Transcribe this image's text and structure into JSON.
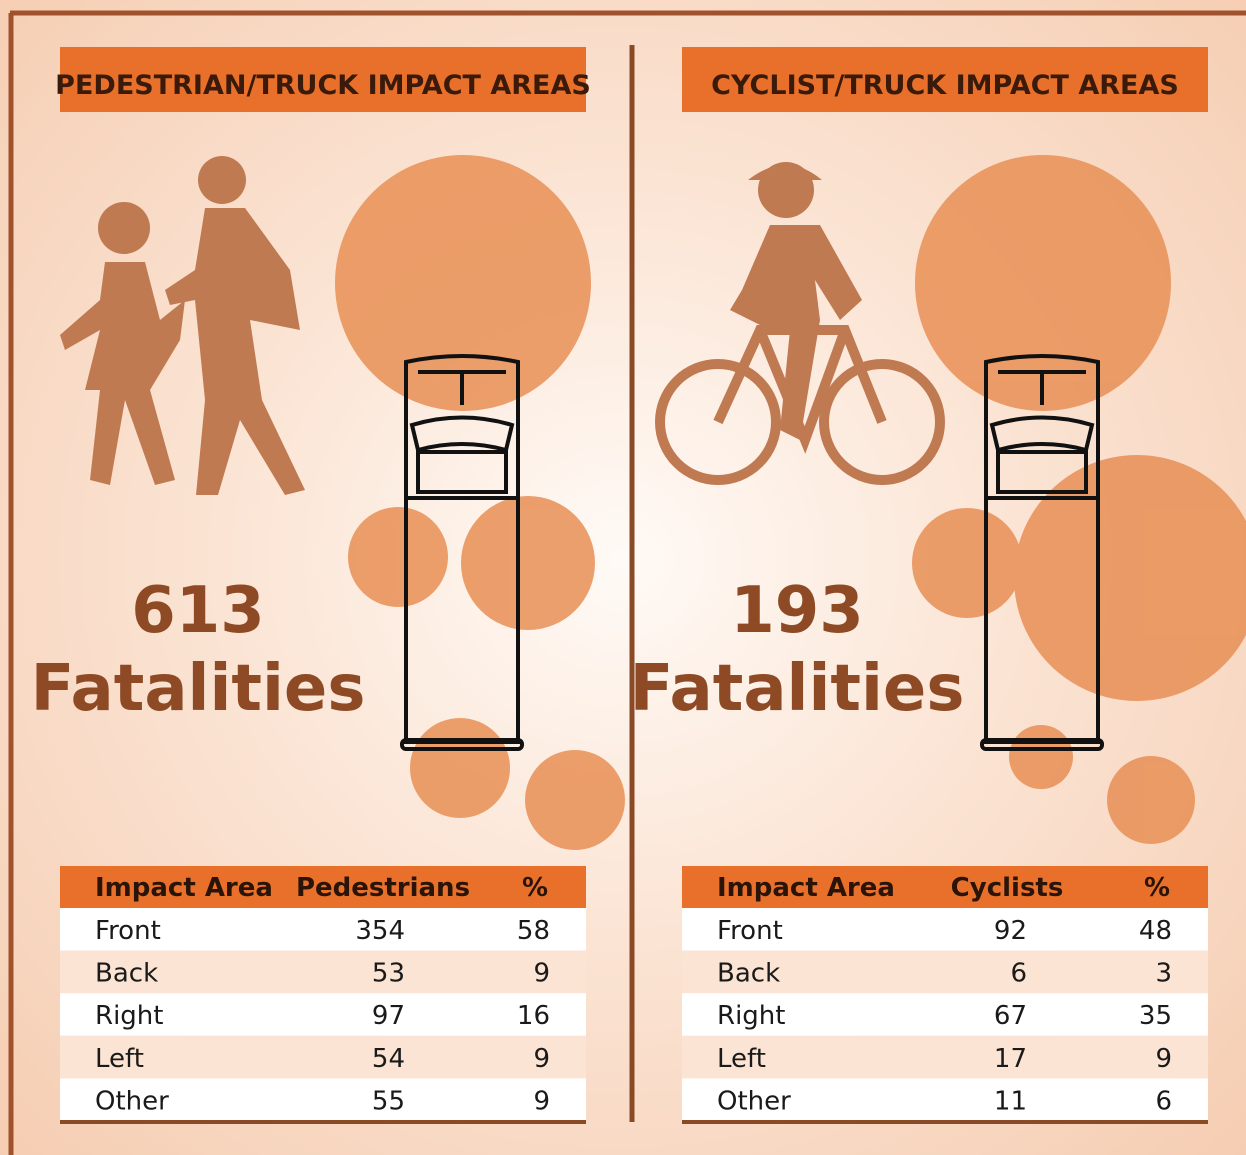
{
  "panels": [
    {
      "title": "PEDESTRIAN/TRUCK IMPACT AREAS",
      "count": "613",
      "label": "Fatalities",
      "table": {
        "header": [
          "Impact Area",
          "Pedestrians",
          "%"
        ],
        "rows": [
          [
            "Front",
            354,
            58
          ],
          [
            "Back",
            53,
            9
          ],
          [
            "Right",
            97,
            16
          ],
          [
            "Left",
            54,
            9
          ],
          [
            "Other",
            55,
            9
          ]
        ]
      }
    },
    {
      "title": "CYCLIST/TRUCK IMPACT AREAS",
      "count": "193",
      "label": "Fatalities",
      "table": {
        "header": [
          "Impact Area",
          "Cyclists",
          "%"
        ],
        "rows": [
          [
            "Front",
            92,
            48
          ],
          [
            "Back",
            6,
            3
          ],
          [
            "Right",
            67,
            35
          ],
          [
            "Left",
            17,
            9
          ],
          [
            "Other",
            11,
            6
          ]
        ]
      }
    }
  ]
}
